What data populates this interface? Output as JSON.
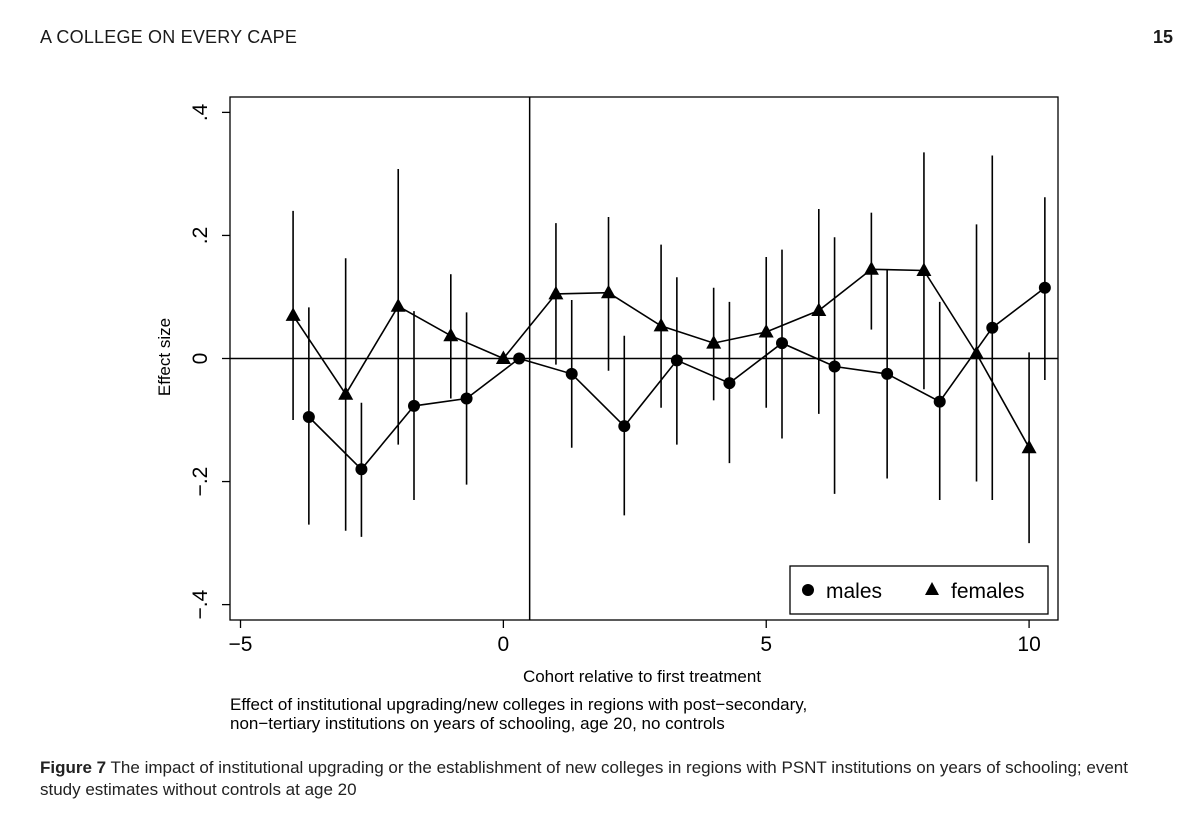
{
  "header": {
    "running_head": "A COLLEGE ON EVERY CAPE",
    "page_number": "15"
  },
  "caption": {
    "label": "Figure 7",
    "text": "The impact of institutional upgrading or the establishment of new colleges in regions with PSNT institutions on years of schooling; event study estimates without controls at age 20"
  },
  "chart_data": {
    "type": "scatter",
    "title": "",
    "xlabel": "Cohort relative to first treatment",
    "ylabel": "Effect size",
    "xlim": [
      -5.2,
      10.55
    ],
    "ylim": [
      -0.425,
      0.425
    ],
    "x_ticks": [
      -5,
      0,
      5,
      10
    ],
    "x_tick_labels": [
      "−5",
      "0",
      "5",
      "10"
    ],
    "y_ticks": [
      -0.4,
      -0.2,
      0,
      0.2,
      0.4
    ],
    "y_tick_labels": [
      "−.4",
      "−.2",
      "0",
      ".2",
      ".4"
    ],
    "reference_lines": {
      "y": 0,
      "x": 0.5
    },
    "note_lines": [
      "Effect of institutional upgrading/new colleges in regions with post−secondary,",
      "non−tertiary institutions on years of schooling, age 20, no controls"
    ],
    "legend": {
      "position": "bottom-right",
      "entries": [
        "males",
        "females"
      ]
    },
    "series": [
      {
        "name": "males",
        "marker": "circle",
        "x": [
          -3.7,
          -2.7,
          -1.7,
          -0.7,
          0.3,
          1.3,
          2.3,
          3.3,
          4.3,
          5.3,
          6.3,
          7.3,
          8.3,
          9.3,
          10.3
        ],
        "values": [
          -0.095,
          -0.18,
          -0.077,
          -0.065,
          0.0,
          -0.025,
          -0.11,
          -0.003,
          -0.04,
          0.025,
          -0.013,
          -0.025,
          -0.07,
          0.05,
          0.115
        ],
        "ci_low": [
          -0.27,
          -0.29,
          -0.23,
          -0.205,
          0.0,
          -0.145,
          -0.255,
          -0.14,
          -0.17,
          -0.13,
          -0.22,
          -0.195,
          -0.23,
          -0.23,
          -0.035
        ],
        "ci_high": [
          0.083,
          -0.072,
          0.077,
          0.075,
          0.0,
          0.095,
          0.037,
          0.132,
          0.092,
          0.177,
          0.197,
          0.145,
          0.092,
          0.33,
          0.262
        ]
      },
      {
        "name": "females",
        "marker": "triangle",
        "x": [
          -4,
          -3,
          -2,
          -1,
          0,
          1,
          2,
          3,
          4,
          5,
          6,
          7,
          8,
          9,
          10
        ],
        "values": [
          0.07,
          -0.058,
          0.085,
          0.037,
          0.0,
          0.105,
          0.107,
          0.053,
          0.025,
          0.043,
          0.078,
          0.145,
          0.143,
          0.008,
          -0.145
        ],
        "ci_low": [
          -0.1,
          -0.28,
          -0.14,
          -0.065,
          0.0,
          -0.01,
          -0.02,
          -0.08,
          -0.068,
          -0.08,
          -0.09,
          0.047,
          -0.05,
          -0.2,
          -0.3
        ],
        "ci_high": [
          0.24,
          0.163,
          0.308,
          0.137,
          0.0,
          0.22,
          0.23,
          0.185,
          0.115,
          0.165,
          0.243,
          0.237,
          0.335,
          0.218,
          0.01
        ]
      }
    ]
  }
}
